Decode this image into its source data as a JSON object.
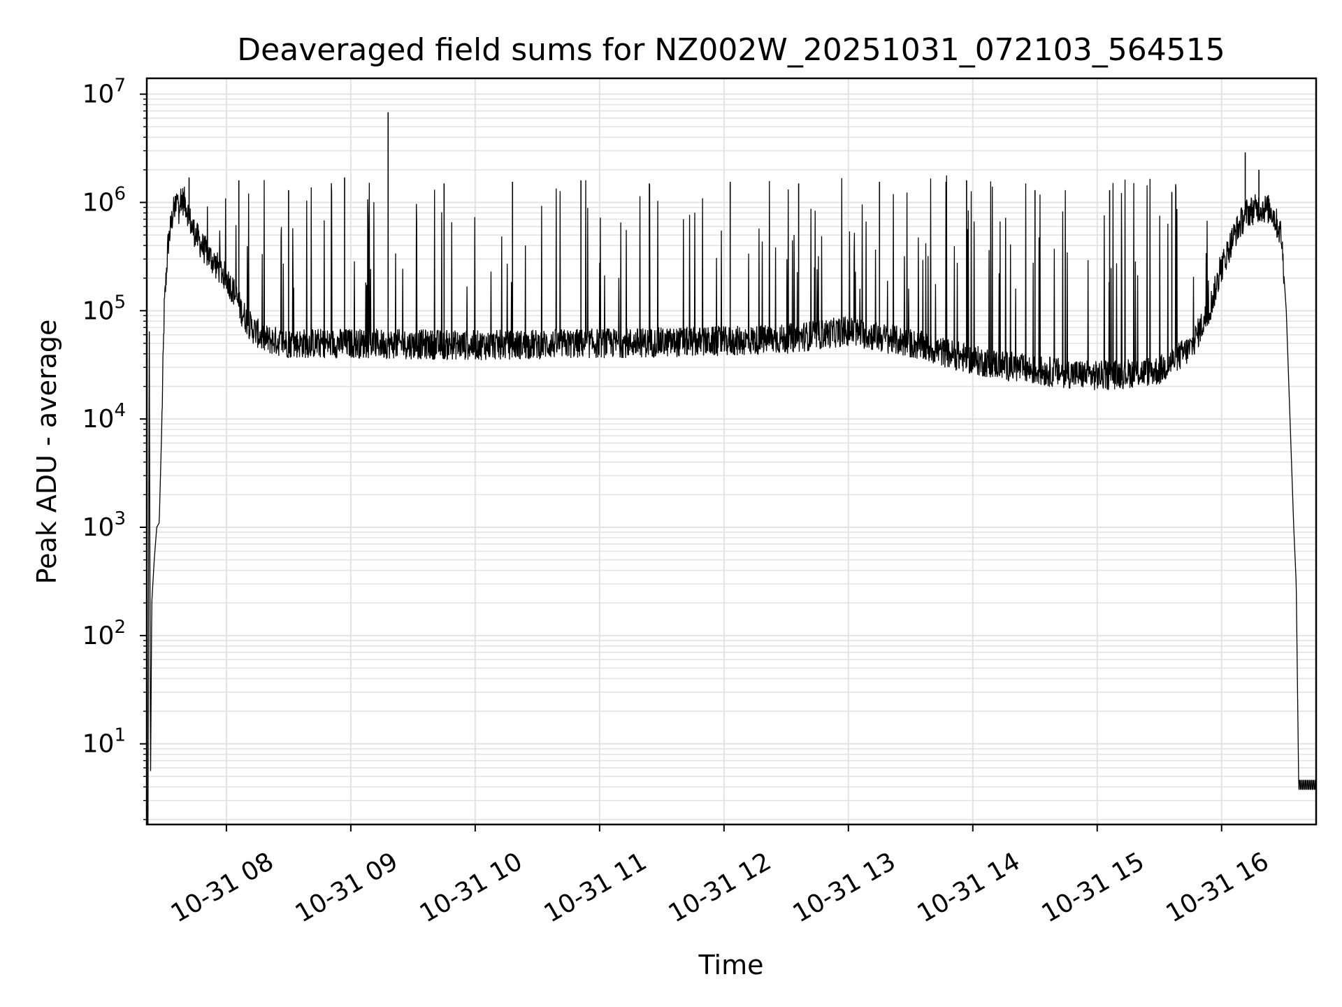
{
  "chart_data": {
    "type": "line",
    "title": "Deaveraged field sums for NZ002W_20251031_072103_564515",
    "xlabel": "Time",
    "ylabel": "Peak ADU - average",
    "yscale": "log",
    "ylim": [
      1.8,
      14000000
    ],
    "xlim_hours": [
      7.36,
      16.76
    ],
    "grid": true,
    "x_ticks": [
      {
        "hour": 8,
        "label": "10-31 08"
      },
      {
        "hour": 9,
        "label": "10-31 09"
      },
      {
        "hour": 10,
        "label": "10-31 10"
      },
      {
        "hour": 11,
        "label": "10-31 11"
      },
      {
        "hour": 12,
        "label": "10-31 12"
      },
      {
        "hour": 13,
        "label": "10-31 13"
      },
      {
        "hour": 14,
        "label": "10-31 14"
      },
      {
        "hour": 15,
        "label": "10-31 15"
      },
      {
        "hour": 16,
        "label": "10-31 16"
      }
    ],
    "y_ticks": [
      {
        "value": 10,
        "base": "10",
        "exp": "1"
      },
      {
        "value": 100,
        "base": "10",
        "exp": "2"
      },
      {
        "value": 1000,
        "base": "10",
        "exp": "3"
      },
      {
        "value": 10000,
        "base": "10",
        "exp": "4"
      },
      {
        "value": 100000,
        "base": "10",
        "exp": "5"
      },
      {
        "value": 1000000,
        "base": "10",
        "exp": "6"
      },
      {
        "value": 10000000,
        "base": "10",
        "exp": "7"
      }
    ],
    "series": [
      {
        "name": "Peak ADU - average",
        "color": "#000000",
        "baseline_points": [
          [
            7.37,
            1.8
          ],
          [
            7.38,
            100000
          ],
          [
            7.39,
            4
          ],
          [
            7.4,
            200
          ],
          [
            7.42,
            500
          ],
          [
            7.44,
            1000
          ],
          [
            7.46,
            1100
          ],
          [
            7.48,
            8000
          ],
          [
            7.5,
            100000
          ],
          [
            7.53,
            400000
          ],
          [
            7.57,
            800000
          ],
          [
            7.62,
            1100000
          ],
          [
            7.67,
            1000000
          ],
          [
            7.72,
            600000
          ],
          [
            7.8,
            400000
          ],
          [
            7.9,
            280000
          ],
          [
            8.0,
            200000
          ],
          [
            8.06,
            150000
          ],
          [
            8.12,
            100000
          ],
          [
            8.2,
            70000
          ],
          [
            8.3,
            55000
          ],
          [
            8.5,
            50000
          ],
          [
            9.0,
            50000
          ],
          [
            10.0,
            48000
          ],
          [
            11.0,
            50000
          ],
          [
            12.0,
            52000
          ],
          [
            12.5,
            55000
          ],
          [
            13.0,
            65000
          ],
          [
            13.5,
            50000
          ],
          [
            14.0,
            35000
          ],
          [
            14.5,
            28000
          ],
          [
            15.0,
            25000
          ],
          [
            15.5,
            28000
          ],
          [
            15.75,
            45000
          ],
          [
            15.9,
            100000
          ],
          [
            16.0,
            250000
          ],
          [
            16.1,
            500000
          ],
          [
            16.2,
            800000
          ],
          [
            16.3,
            900000
          ],
          [
            16.4,
            850000
          ],
          [
            16.48,
            500000
          ],
          [
            16.52,
            100000
          ],
          [
            16.55,
            10000
          ],
          [
            16.58,
            1000
          ],
          [
            16.6,
            300
          ],
          [
            16.62,
            4
          ],
          [
            16.76,
            4
          ]
        ],
        "spikes": [
          {
            "hour": 7.7,
            "value": 1700000
          },
          {
            "hour": 8.1,
            "value": 1600000
          },
          {
            "hour": 8.5,
            "value": 1300000
          },
          {
            "hour": 8.95,
            "value": 1700000
          },
          {
            "hour": 9.3,
            "value": 6800000
          },
          {
            "hour": 9.75,
            "value": 1500000
          },
          {
            "hour": 10.3,
            "value": 1550000
          },
          {
            "hour": 10.85,
            "value": 1600000
          },
          {
            "hour": 11.4,
            "value": 1500000
          },
          {
            "hour": 12.05,
            "value": 1550000
          },
          {
            "hour": 12.6,
            "value": 1500000
          },
          {
            "hour": 13.25,
            "value": 1550000
          },
          {
            "hour": 13.95,
            "value": 1600000
          },
          {
            "hour": 14.5,
            "value": 1300000
          },
          {
            "hour": 15.1,
            "value": 1300000
          },
          {
            "hour": 15.6,
            "value": 1250000
          },
          {
            "hour": 16.19,
            "value": 2900000
          },
          {
            "hour": 16.3,
            "value": 2000000
          }
        ]
      }
    ]
  }
}
